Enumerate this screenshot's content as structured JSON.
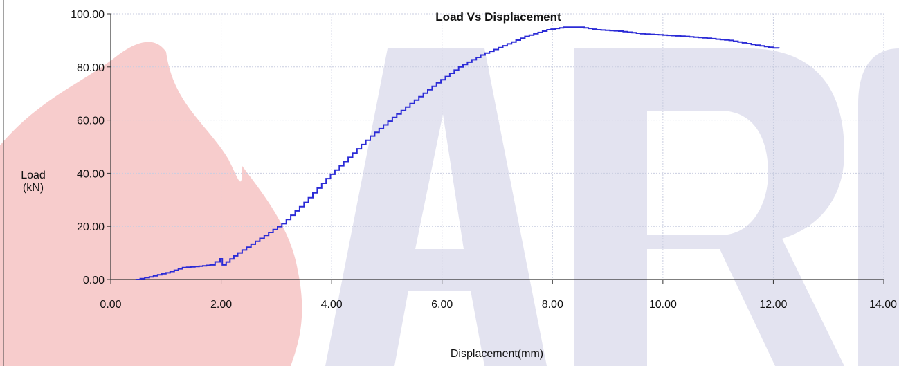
{
  "chart_data": {
    "type": "line",
    "title": "Load Vs Displacement",
    "xlabel": "Displacement(mm)",
    "ylabel_line1": "Load",
    "ylabel_line2": "(kN)",
    "xlim": [
      0,
      14
    ],
    "ylim": [
      0,
      100
    ],
    "x_ticks": [
      "0.00",
      "2.00",
      "4.00",
      "6.00",
      "8.00",
      "10.00",
      "12.00",
      "14.00"
    ],
    "y_ticks": [
      "0.00",
      "20.00",
      "40.00",
      "60.00",
      "80.00",
      "100.00"
    ],
    "grid": true,
    "series": [
      {
        "color": "#2b2bd6",
        "x": [
          0.45,
          0.7,
          1.0,
          1.3,
          1.6,
          1.8,
          1.98,
          2.02,
          2.3,
          2.7,
          3.1,
          3.5,
          3.9,
          4.3,
          4.7,
          5.1,
          5.5,
          5.9,
          6.3,
          6.7,
          7.1,
          7.5,
          7.9,
          8.2,
          8.5,
          8.8,
          9.2,
          9.6,
          10.0,
          10.4,
          10.8,
          11.2,
          11.6,
          12.0,
          12.1
        ],
        "y": [
          0.0,
          1.0,
          2.5,
          4.5,
          5.0,
          5.5,
          7.8,
          5.5,
          10.0,
          15.5,
          21.0,
          29.0,
          38.0,
          46.0,
          54.0,
          61.0,
          67.5,
          74.0,
          80.0,
          84.5,
          88.0,
          91.5,
          94.0,
          95.0,
          95.0,
          94.0,
          93.5,
          92.5,
          92.0,
          91.5,
          90.8,
          90.0,
          88.5,
          87.2,
          87.0
        ]
      }
    ]
  },
  "watermark": {
    "text": "ARF",
    "flame_color": "#f7cccc",
    "letters_color": "#e3e3f0"
  }
}
